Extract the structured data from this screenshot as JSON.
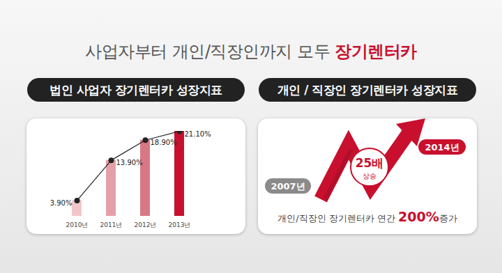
{
  "title": {
    "text": "사업자부터 개인/직장인까지 모두",
    "highlight": "장기렌터카"
  },
  "chart_data": {
    "type": "bar",
    "title": "법인 사업자 장기렌터카 성장지표",
    "categories": [
      "2010년",
      "2011년",
      "2012년",
      "2013년"
    ],
    "series": [
      {
        "type": "bar",
        "values": [
          3.9,
          13.9,
          18.9,
          21.1
        ],
        "colors": [
          "#f2c6cb",
          "#e4a0a9",
          "#d87885",
          "#c8102e"
        ]
      },
      {
        "type": "line",
        "values": [
          3.9,
          13.9,
          18.9,
          21.1
        ],
        "color": "#222222",
        "marker": "circle",
        "data_labels": true,
        "value_labels": [
          "3.90%",
          "13.90%",
          "18.90%",
          "21.10%"
        ]
      }
    ],
    "ylim": [
      0,
      21.1
    ],
    "tick_labels": "x",
    "grid": false
  },
  "infographic": {
    "title": "개인 / 직장인 장기렌터카 성장지표",
    "start_label": "2007년",
    "end_label": "2014년",
    "badge": {
      "value": "25배",
      "text": "상승"
    },
    "caption": {
      "text": "개인/직장인 장기렌터카 연간 ",
      "highlight": "200%",
      "suffix": "증가"
    }
  }
}
